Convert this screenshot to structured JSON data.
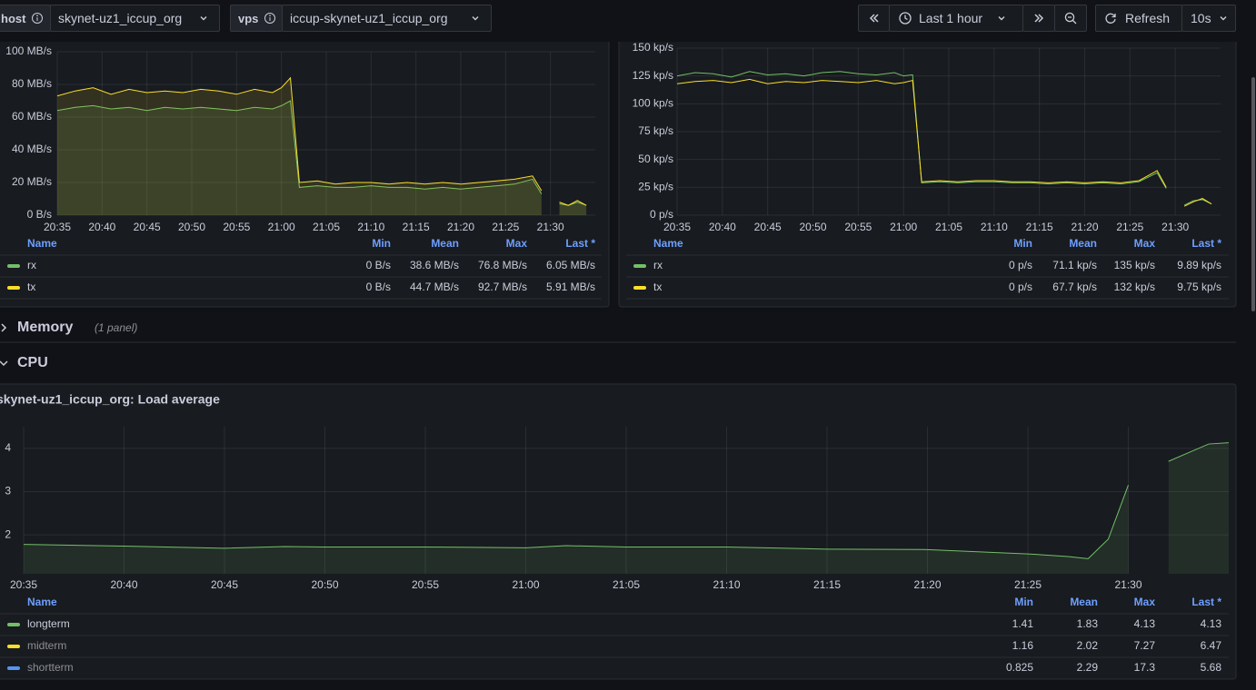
{
  "toolbar": {
    "variables": [
      {
        "label": "host",
        "value": "skynet-uz1_iccup_org"
      },
      {
        "label": "vps",
        "value": "iccup-skynet-uz1_iccup_org"
      }
    ],
    "time_range": "Last 1 hour",
    "refresh": "Refresh",
    "refresh_interval": "10s"
  },
  "rows": [
    {
      "title": "Memory",
      "note": "(1 panel)"
    },
    {
      "title": "CPU"
    }
  ],
  "chart_data": [
    {
      "type": "line",
      "fill": true,
      "x": [
        "20:35",
        "20:37",
        "20:39",
        "20:41",
        "20:43",
        "20:45",
        "20:47",
        "20:49",
        "20:51",
        "20:53",
        "20:55",
        "20:57",
        "20:59",
        "21:00",
        "21:01",
        "21:02",
        "21:04",
        "21:06",
        "21:08",
        "21:10",
        "21:12",
        "21:14",
        "21:16",
        "21:18",
        "21:20",
        "21:22",
        "21:24",
        "21:26",
        "21:28",
        "21:29",
        "21:30",
        "21:31",
        "21:32",
        "21:33",
        "21:34"
      ],
      "xlim": [
        "20:35",
        "21:35"
      ],
      "xticks": [
        "20:35",
        "20:40",
        "20:45",
        "20:50",
        "20:55",
        "21:00",
        "21:05",
        "21:10",
        "21:15",
        "21:20",
        "21:25",
        "21:30"
      ],
      "ylim": [
        0,
        100
      ],
      "yticks": [
        {
          "value": 0,
          "label": "0 B/s"
        },
        {
          "value": 20,
          "label": "20 MB/s"
        },
        {
          "value": 40,
          "label": "40 MB/s"
        },
        {
          "value": 60,
          "label": "60 MB/s"
        },
        {
          "value": 80,
          "label": "80 MB/s"
        },
        {
          "value": 100,
          "label": "100 MB/s"
        }
      ],
      "grid": true,
      "legend_columns": [
        "Name",
        "Min",
        "Mean",
        "Max",
        "Last *"
      ],
      "series": [
        {
          "name": "rx",
          "color": "#73bf69",
          "stats": [
            "0 B/s",
            "38.6 MB/s",
            "76.8 MB/s",
            "6.05 MB/s"
          ],
          "values": [
            64,
            66,
            67,
            65,
            66,
            64,
            66,
            65,
            66,
            65,
            64,
            66,
            65,
            67,
            70,
            17,
            18,
            17,
            17,
            18,
            17,
            17,
            16,
            17,
            16,
            17,
            18,
            19,
            22,
            13,
            null,
            7,
            6,
            8,
            6
          ]
        },
        {
          "name": "tx",
          "color": "#fade2a",
          "stats": [
            "0 B/s",
            "44.7 MB/s",
            "92.7 MB/s",
            "5.91 MB/s"
          ],
          "values": [
            73,
            76,
            78,
            74,
            77,
            75,
            76,
            75,
            77,
            76,
            74,
            77,
            75,
            78,
            84,
            20,
            21,
            19,
            20,
            20,
            19,
            20,
            19,
            20,
            19,
            20,
            21,
            22,
            24,
            15,
            null,
            8,
            6,
            9,
            6
          ]
        }
      ]
    },
    {
      "type": "line",
      "fill": false,
      "x": [
        "20:35",
        "20:37",
        "20:39",
        "20:41",
        "20:43",
        "20:45",
        "20:47",
        "20:49",
        "20:51",
        "20:53",
        "20:55",
        "20:57",
        "20:59",
        "21:00",
        "21:01",
        "21:02",
        "21:04",
        "21:06",
        "21:08",
        "21:10",
        "21:12",
        "21:14",
        "21:16",
        "21:18",
        "21:20",
        "21:22",
        "21:24",
        "21:26",
        "21:28",
        "21:29",
        "21:30",
        "21:31",
        "21:32",
        "21:33",
        "21:34"
      ],
      "xlim": [
        "20:35",
        "21:35"
      ],
      "xticks": [
        "20:35",
        "20:40",
        "20:45",
        "20:50",
        "20:55",
        "21:00",
        "21:05",
        "21:10",
        "21:15",
        "21:20",
        "21:25",
        "21:30"
      ],
      "ylim": [
        0,
        150
      ],
      "yticks": [
        {
          "value": 0,
          "label": "0 p/s"
        },
        {
          "value": 25,
          "label": "25 kp/s"
        },
        {
          "value": 50,
          "label": "50 kp/s"
        },
        {
          "value": 75,
          "label": "75 kp/s"
        },
        {
          "value": 100,
          "label": "100 kp/s"
        },
        {
          "value": 125,
          "label": "125 kp/s"
        },
        {
          "value": 150,
          "label": "150 kp/s"
        }
      ],
      "grid": true,
      "legend_columns": [
        "Name",
        "Min",
        "Mean",
        "Max",
        "Last *"
      ],
      "series": [
        {
          "name": "rx",
          "color": "#73bf69",
          "stats": [
            "0 p/s",
            "71.1 kp/s",
            "135 kp/s",
            "9.89 kp/s"
          ],
          "values": [
            125,
            128,
            127,
            124,
            129,
            126,
            127,
            125,
            128,
            129,
            127,
            126,
            128,
            125,
            126,
            29,
            30,
            29,
            30,
            30,
            29,
            29,
            28,
            29,
            28,
            29,
            28,
            30,
            38,
            24,
            null,
            9,
            13,
            14,
            10
          ]
        },
        {
          "name": "tx",
          "color": "#fade2a",
          "stats": [
            "0 p/s",
            "67.7 kp/s",
            "132 kp/s",
            "9.75 kp/s"
          ],
          "values": [
            118,
            120,
            121,
            119,
            122,
            118,
            120,
            119,
            121,
            120,
            119,
            121,
            118,
            119,
            121,
            30,
            31,
            30,
            31,
            31,
            30,
            30,
            29,
            30,
            29,
            30,
            29,
            31,
            40,
            25,
            null,
            8,
            12,
            15,
            10
          ]
        }
      ]
    },
    {
      "type": "line",
      "fill": true,
      "title": "skynet-uz1_iccup_org: Load average",
      "x": [
        "20:35",
        "20:40",
        "20:45",
        "20:48",
        "20:50",
        "20:55",
        "21:00",
        "21:02",
        "21:05",
        "21:10",
        "21:15",
        "21:20",
        "21:25",
        "21:27",
        "21:28",
        "21:29",
        "21:30",
        "21:31",
        "21:32",
        "21:33",
        "21:34",
        "21:35"
      ],
      "xlim": [
        "20:35",
        "21:35"
      ],
      "xticks": [
        "20:35",
        "20:40",
        "20:45",
        "20:50",
        "20:55",
        "21:00",
        "21:05",
        "21:10",
        "21:15",
        "21:20",
        "21:25",
        "21:30"
      ],
      "ylim": [
        1.1,
        4.5
      ],
      "yticks": [
        2,
        3,
        4
      ],
      "grid": true,
      "legend_columns": [
        "Name",
        "Min",
        "Mean",
        "Max",
        "Last *"
      ],
      "series": [
        {
          "name": "longterm",
          "color": "#73bf69",
          "stats": [
            "1.41",
            "1.83",
            "4.13",
            "4.13"
          ],
          "values": [
            1.78,
            1.74,
            1.69,
            1.73,
            1.72,
            1.72,
            1.7,
            1.75,
            1.72,
            1.72,
            1.67,
            1.66,
            1.56,
            1.5,
            1.45,
            1.9,
            3.15,
            null,
            3.7,
            3.9,
            4.1,
            4.13
          ]
        },
        {
          "name": "midterm",
          "color": "#fade2a",
          "hidden": true,
          "stats": [
            "1.16",
            "2.02",
            "7.27",
            "6.47"
          ]
        },
        {
          "name": "shortterm",
          "color": "#5794f2",
          "hidden": true,
          "stats": [
            "0.825",
            "2.29",
            "17.3",
            "5.68"
          ]
        }
      ]
    }
  ]
}
